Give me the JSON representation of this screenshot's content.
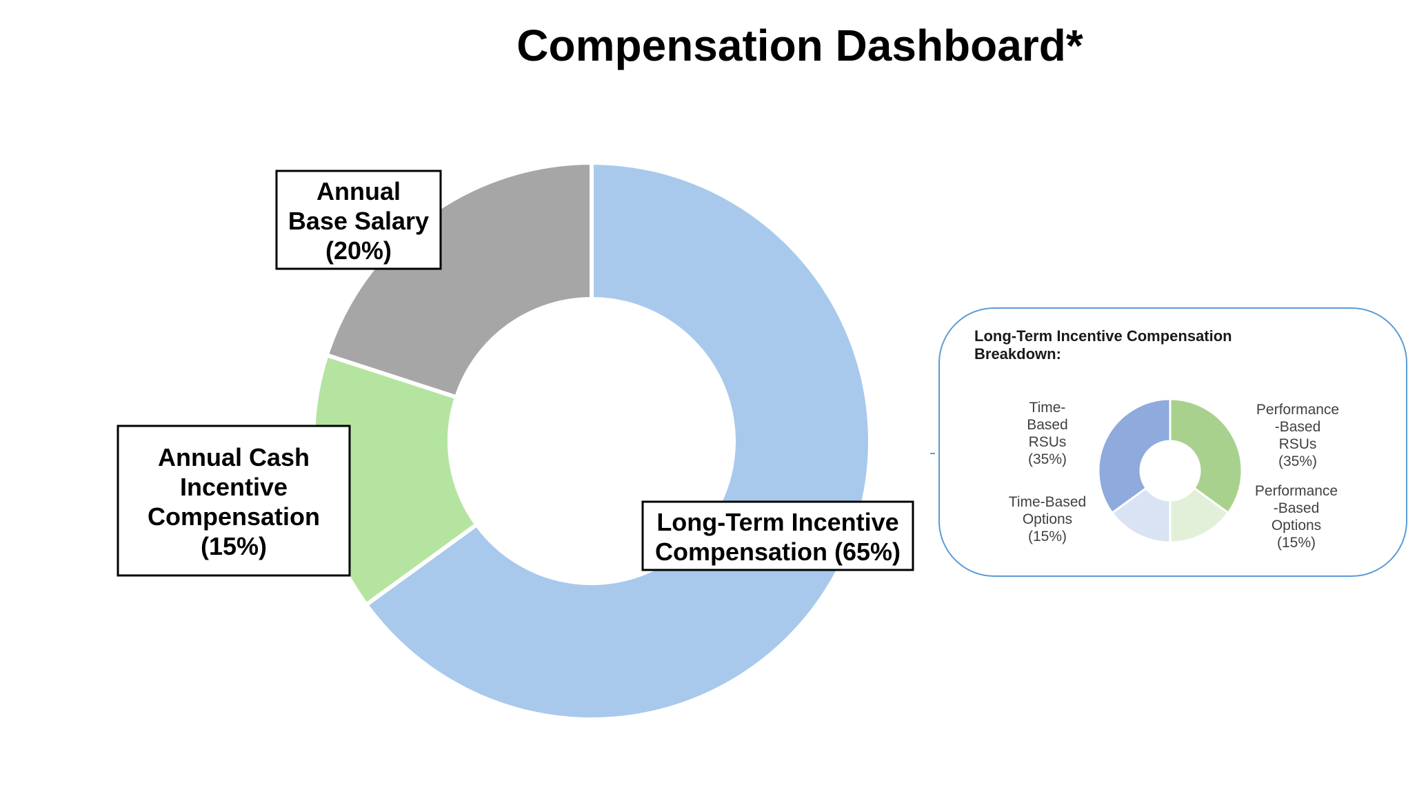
{
  "chart_data": [
    {
      "type": "pie",
      "style": "donut",
      "title": "Compensation Dashboard*",
      "slices": [
        {
          "label_lines": [
            "Long-Term Incentive",
            "Compensation (65%)"
          ],
          "value": 65,
          "color": "#a8c9eb"
        },
        {
          "label_lines": [
            "Annual Cash",
            "Incentive",
            "Compensation",
            "(15%)"
          ],
          "value": 15,
          "color": "#b5e4a0"
        },
        {
          "label_lines": [
            "Annual",
            "Base Salary",
            "(20%)"
          ],
          "value": 20,
          "color": "#a6a6a6"
        }
      ]
    },
    {
      "type": "pie",
      "style": "donut",
      "title_lines": [
        "Long-Term Incentive Compensation",
        "Breakdown:"
      ],
      "slices": [
        {
          "label_lines": [
            "Performance",
            "-Based",
            "RSUs",
            "(35%)"
          ],
          "value": 35,
          "color": "#a9d18e"
        },
        {
          "label_lines": [
            "Performance",
            "-Based",
            "Options",
            "(15%)"
          ],
          "value": 15,
          "color": "#e2f0d9"
        },
        {
          "label_lines": [
            "Time-Based",
            "Options",
            "(15%)"
          ],
          "value": 15,
          "color": "#dae3f3"
        },
        {
          "label_lines": [
            "Time-",
            "Based",
            "RSUs",
            "(35%)"
          ],
          "value": 35,
          "color": "#8faadc"
        }
      ]
    }
  ]
}
